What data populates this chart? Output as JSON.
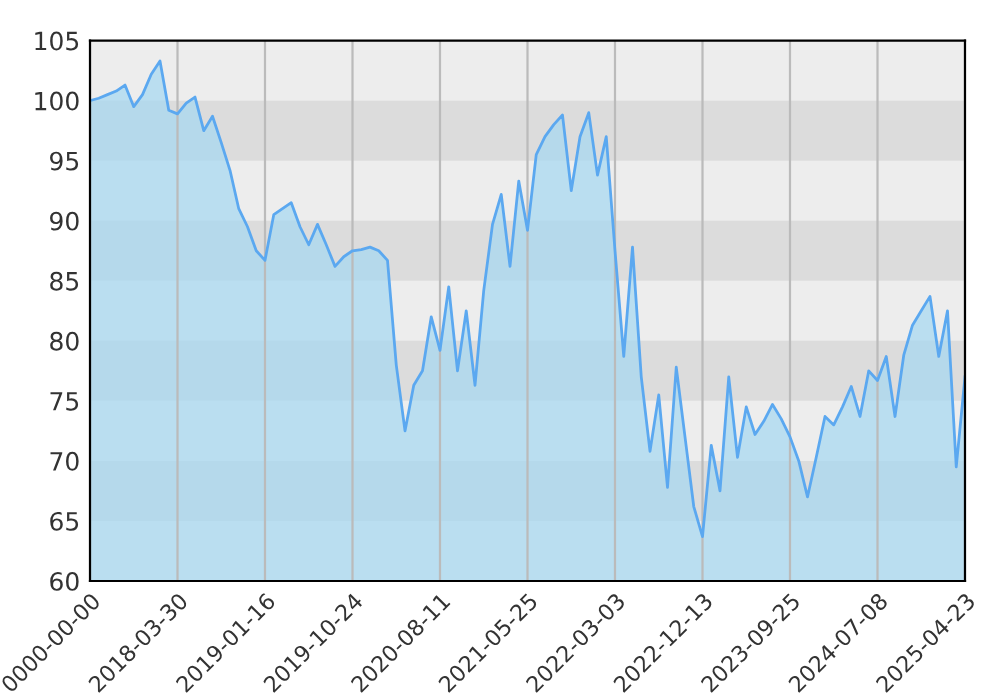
{
  "chart_data": {
    "type": "area",
    "categories": [
      "0000-00-00",
      null,
      null,
      null,
      null,
      null,
      null,
      null,
      null,
      null,
      "2018-03-30",
      null,
      null,
      null,
      null,
      null,
      null,
      null,
      null,
      null,
      "2019-01-16",
      null,
      null,
      null,
      null,
      null,
      null,
      null,
      null,
      null,
      "2019-10-24",
      null,
      null,
      null,
      null,
      null,
      null,
      null,
      null,
      null,
      "2020-08-11",
      null,
      null,
      null,
      null,
      null,
      null,
      null,
      null,
      null,
      "2021-05-25",
      null,
      null,
      null,
      null,
      null,
      null,
      null,
      null,
      null,
      "2022-03-03",
      null,
      null,
      null,
      null,
      null,
      null,
      null,
      null,
      null,
      "2022-12-13",
      null,
      null,
      null,
      null,
      null,
      null,
      null,
      null,
      null,
      "2023-09-25",
      null,
      null,
      null,
      null,
      null,
      null,
      null,
      null,
      null,
      "2024-07-08",
      null,
      null,
      null,
      null,
      null,
      null,
      null,
      null,
      null,
      "2025-04-23"
    ],
    "series": [
      {
        "color": "#5ba8f0",
        "values": [
          100.0,
          100.2,
          100.5,
          100.8,
          101.3,
          99.5,
          100.5,
          102.2,
          103.3,
          99.2,
          98.9,
          99.8,
          100.3,
          97.5,
          98.7,
          96.5,
          94.2,
          91,
          89.5,
          87.5,
          86.7,
          90.5,
          91,
          91.5,
          89.5,
          88,
          89.7,
          88,
          86.2,
          87,
          87.5,
          87.6,
          87.8,
          87.5,
          86.7,
          78,
          72.5,
          76.3,
          77.5,
          82,
          79.2,
          84.5,
          77.5,
          82.5,
          76.3,
          84.2,
          89.7,
          92.2,
          86.2,
          93.3,
          89.2,
          95.5,
          97,
          98,
          98.8,
          92.5,
          97,
          99,
          93.8,
          97,
          87.5,
          78.7,
          87.8,
          77,
          70.8,
          75.5,
          67.8,
          77.8,
          72,
          66.2,
          63.7,
          71.3,
          67.5,
          77,
          70.3,
          74.5,
          72.2,
          73.3,
          74.7,
          73.5,
          72,
          70,
          67,
          70.3,
          73.7,
          73,
          74.5,
          76.2,
          73.7,
          77.5,
          76.7,
          78.7,
          73.7,
          78.8,
          81.3,
          82.5,
          83.7,
          78.7,
          82.5,
          69.5,
          77
        ]
      }
    ],
    "ylim": [
      60,
      105
    ],
    "yticks": [
      60,
      65,
      70,
      75,
      80,
      85,
      90,
      95,
      100,
      105
    ],
    "grid": "x",
    "bands": [
      {
        "axis": "y",
        "from": 95,
        "to": 100,
        "color": "#dcdcdc"
      },
      {
        "axis": "y",
        "from": 85,
        "to": 90,
        "color": "#dcdcdc"
      },
      {
        "axis": "y",
        "from": 75,
        "to": 80,
        "color": "#dcdcdc"
      },
      {
        "axis": "y",
        "from": 65,
        "to": 70,
        "color": "#dcdcdc"
      }
    ]
  }
}
